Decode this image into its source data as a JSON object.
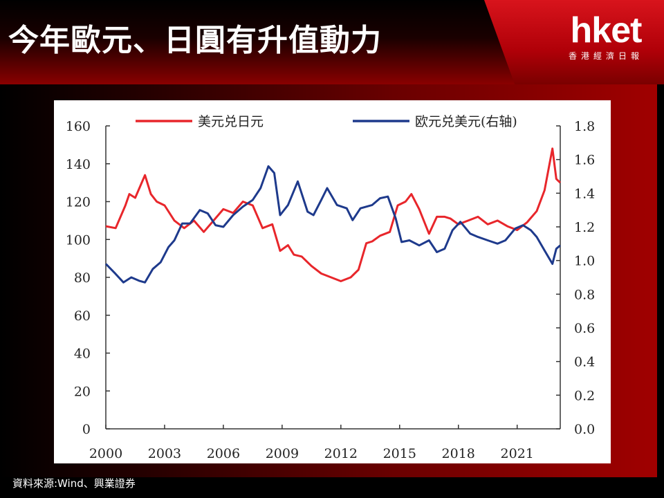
{
  "header": {
    "title": "今年歐元、日圓有升值動力",
    "logo_brand": "hket",
    "logo_sub": "香港經濟日報"
  },
  "footer": {
    "source": "資料來源:Wind、興業證券"
  },
  "colors": {
    "usdjpy": "#e8262b",
    "eurusd": "#1e3a8c",
    "accent": "#d8141c"
  },
  "chart_data": {
    "type": "line",
    "title": "",
    "xlabel": "",
    "ylabel": "",
    "xlim": [
      2000,
      2023.2
    ],
    "ylim": [
      0,
      160
    ],
    "y2lim": [
      0,
      1.8
    ],
    "x_ticks": [
      "2000",
      "2003",
      "2006",
      "2009",
      "2012",
      "2015",
      "2018",
      "2021"
    ],
    "y_ticks": [
      "160",
      "140",
      "120",
      "100",
      "80",
      "60",
      "40",
      "20",
      "0"
    ],
    "y2_ticks": [
      "1.8",
      "1.6",
      "1.4",
      "1.2",
      "1.0",
      "0.8",
      "0.6",
      "0.4",
      "0.2",
      "0.0"
    ],
    "grid": false,
    "legend_position": "top",
    "series": [
      {
        "name": "美元兑日元",
        "axis": "left",
        "x": [
          2000.0,
          2000.5,
          2001.0,
          2001.2,
          2001.5,
          2002.0,
          2002.3,
          2002.6,
          2003.0,
          2003.5,
          2004.0,
          2004.5,
          2005.0,
          2005.5,
          2006.0,
          2006.5,
          2007.0,
          2007.5,
          2008.0,
          2008.5,
          2008.9,
          2009.3,
          2009.6,
          2010.0,
          2010.5,
          2011.0,
          2011.5,
          2012.0,
          2012.5,
          2012.9,
          2013.3,
          2013.6,
          2014.0,
          2014.5,
          2014.9,
          2015.3,
          2015.6,
          2016.0,
          2016.5,
          2016.9,
          2017.3,
          2017.6,
          2018.0,
          2018.5,
          2019.0,
          2019.5,
          2020.0,
          2020.5,
          2021.0,
          2021.5,
          2022.0,
          2022.4,
          2022.8,
          2023.0,
          2023.2
        ],
        "values": [
          107,
          106,
          118,
          124,
          122,
          134,
          124,
          120,
          118,
          110,
          106,
          110,
          104,
          110,
          116,
          114,
          120,
          118,
          106,
          108,
          94,
          97,
          92,
          91,
          86,
          82,
          80,
          78,
          80,
          84,
          98,
          99,
          102,
          104,
          118,
          120,
          124,
          116,
          103,
          112,
          112,
          111,
          108,
          110,
          112,
          108,
          110,
          107,
          105,
          109,
          115,
          126,
          148,
          132,
          130
        ]
      },
      {
        "name": "欧元兑美元(右轴)",
        "axis": "right",
        "x": [
          2000.0,
          2000.5,
          2000.9,
          2001.3,
          2001.7,
          2002.0,
          2002.4,
          2002.8,
          2003.2,
          2003.5,
          2003.9,
          2004.3,
          2004.8,
          2005.2,
          2005.6,
          2006.0,
          2006.5,
          2007.0,
          2007.5,
          2007.9,
          2008.3,
          2008.6,
          2008.9,
          2009.3,
          2009.8,
          2010.3,
          2010.6,
          2011.0,
          2011.3,
          2011.8,
          2012.3,
          2012.6,
          2013.0,
          2013.6,
          2014.0,
          2014.4,
          2014.8,
          2015.1,
          2015.5,
          2016.0,
          2016.5,
          2016.9,
          2017.3,
          2017.7,
          2018.1,
          2018.6,
          2019.0,
          2019.5,
          2020.0,
          2020.4,
          2020.9,
          2021.3,
          2021.7,
          2022.0,
          2022.4,
          2022.8,
          2023.0,
          2023.2
        ],
        "values": [
          0.98,
          0.92,
          0.87,
          0.9,
          0.88,
          0.87,
          0.95,
          0.99,
          1.08,
          1.12,
          1.22,
          1.22,
          1.3,
          1.28,
          1.21,
          1.2,
          1.27,
          1.32,
          1.36,
          1.43,
          1.56,
          1.52,
          1.27,
          1.33,
          1.47,
          1.29,
          1.27,
          1.36,
          1.43,
          1.33,
          1.31,
          1.24,
          1.31,
          1.33,
          1.37,
          1.38,
          1.25,
          1.11,
          1.12,
          1.09,
          1.12,
          1.05,
          1.07,
          1.18,
          1.23,
          1.16,
          1.14,
          1.12,
          1.1,
          1.12,
          1.19,
          1.21,
          1.18,
          1.14,
          1.06,
          0.98,
          1.07,
          1.09
        ]
      }
    ]
  }
}
